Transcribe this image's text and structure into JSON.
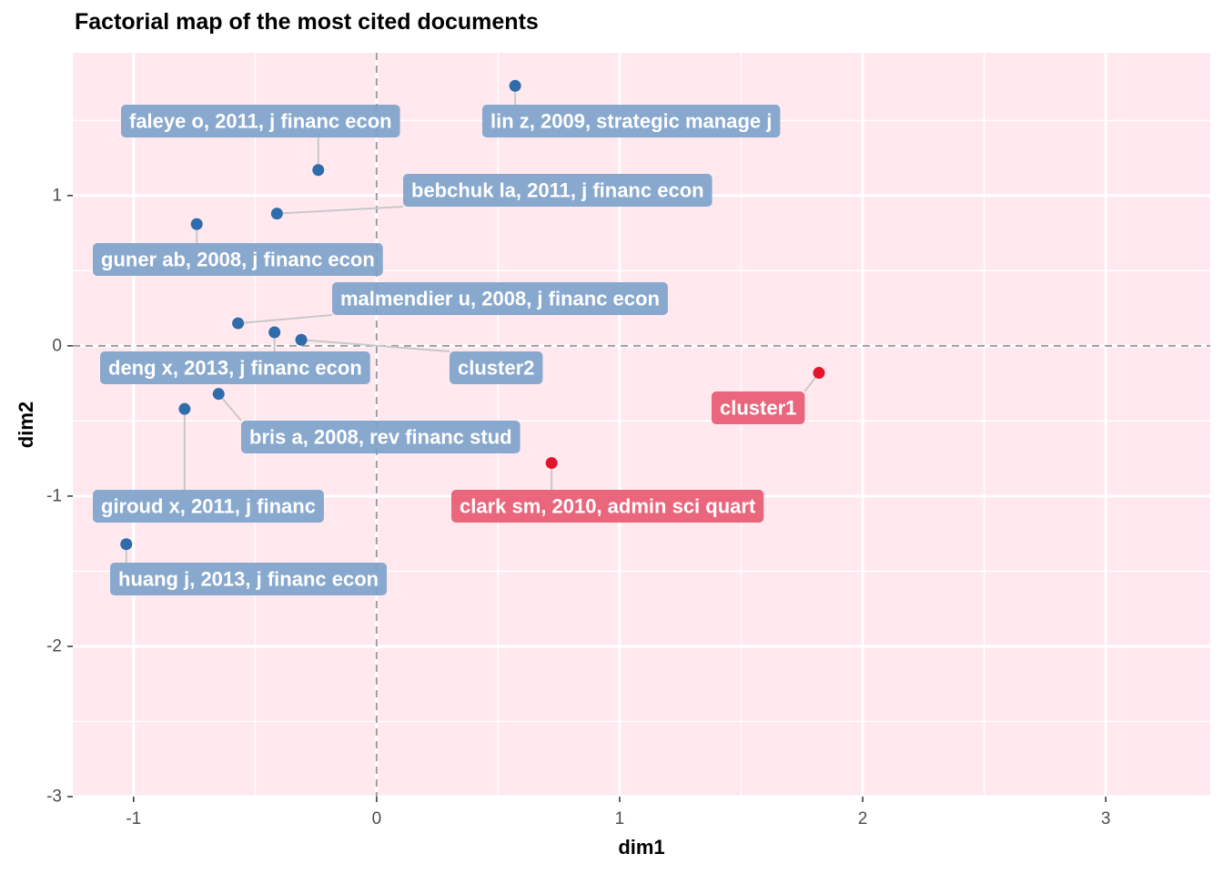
{
  "chart_data": {
    "type": "scatter",
    "title": "Factorial map of the most cited documents",
    "xlabel": "dim1",
    "ylabel": "dim2",
    "xlim": [
      -1.25,
      3.43
    ],
    "ylim": [
      -3.0,
      1.95
    ],
    "x_ticks": [
      "-1",
      "0",
      "1",
      "2",
      "3"
    ],
    "y_ticks": [
      "-3",
      "-2",
      "-1",
      "0",
      "1"
    ],
    "reference_lines": {
      "x": 0,
      "y": 0,
      "style": "dashed"
    },
    "grid": true,
    "background_color": "#ffe9ef",
    "cluster_colors": {
      "cluster2": "#2e6cac",
      "cluster1": "#e3132c"
    },
    "label_colors": {
      "cluster2": "#7ea2cb",
      "cluster1": "#e85a72"
    },
    "points": [
      {
        "label": "lin z, 2009, strategic manage j",
        "x": 0.57,
        "y": 1.73,
        "cluster": "cluster2"
      },
      {
        "label": "faleye o, 2011, j financ econ",
        "x": -0.24,
        "y": 1.17,
        "cluster": "cluster2"
      },
      {
        "label": "bebchuk la, 2011, j financ econ",
        "x": -0.41,
        "y": 0.88,
        "cluster": "cluster2"
      },
      {
        "label": "guner ab, 2008, j financ econ",
        "x": -0.74,
        "y": 0.81,
        "cluster": "cluster2"
      },
      {
        "label": "malmendier u, 2008, j financ econ",
        "x": -0.57,
        "y": 0.15,
        "cluster": "cluster2"
      },
      {
        "label": "deng x, 2013, j financ econ",
        "x": -0.42,
        "y": 0.09,
        "cluster": "cluster2"
      },
      {
        "label": "cluster2",
        "x": -0.31,
        "y": 0.04,
        "cluster": "cluster2"
      },
      {
        "label": "bris a, 2008, rev financ stud",
        "x": -0.65,
        "y": -0.32,
        "cluster": "cluster2"
      },
      {
        "label": "giroud x, 2011, j financ",
        "x": -0.79,
        "y": -0.42,
        "cluster": "cluster2"
      },
      {
        "label": "huang j, 2013, j financ econ",
        "x": -1.03,
        "y": -1.32,
        "cluster": "cluster2"
      },
      {
        "label": "clark sm, 2010, admin sci quart",
        "x": 0.72,
        "y": -0.78,
        "cluster": "cluster1"
      },
      {
        "label": "cluster1",
        "x": 1.82,
        "y": -0.18,
        "cluster": "cluster1"
      }
    ]
  }
}
